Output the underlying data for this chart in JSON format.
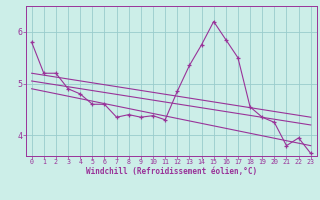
{
  "xlabel": "Windchill (Refroidissement éolien,°C)",
  "bg_color": "#cceee8",
  "line_color": "#993399",
  "grid_color": "#99cccc",
  "xlim": [
    -0.5,
    23.5
  ],
  "ylim": [
    3.6,
    6.5
  ],
  "yticks": [
    4,
    5,
    6
  ],
  "xticks": [
    0,
    1,
    2,
    3,
    4,
    5,
    6,
    7,
    8,
    9,
    10,
    11,
    12,
    13,
    14,
    15,
    16,
    17,
    18,
    19,
    20,
    21,
    22,
    23
  ],
  "series1_x": [
    0,
    1,
    2,
    3,
    4,
    5,
    6,
    7,
    8,
    9,
    10,
    11,
    12,
    13,
    14,
    15,
    16,
    17,
    18,
    19,
    20,
    21,
    22,
    23
  ],
  "series1_y": [
    5.8,
    5.2,
    5.2,
    4.9,
    4.8,
    4.6,
    4.6,
    4.35,
    4.4,
    4.35,
    4.38,
    4.3,
    4.85,
    5.35,
    5.75,
    6.2,
    5.85,
    5.5,
    4.55,
    4.35,
    4.25,
    3.8,
    3.95,
    3.65
  ],
  "line1_x": [
    0,
    23
  ],
  "line1_y": [
    5.2,
    4.35
  ],
  "line2_x": [
    0,
    23
  ],
  "line2_y": [
    5.05,
    4.2
  ],
  "line3_x": [
    0,
    23
  ],
  "line3_y": [
    4.9,
    3.8
  ]
}
